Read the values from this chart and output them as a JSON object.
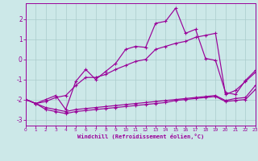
{
  "xlabel": "Windchill (Refroidissement éolien,°C)",
  "background_color": "#cce8e8",
  "grid_color": "#aacccc",
  "line_color": "#990099",
  "xlim": [
    0,
    23
  ],
  "ylim": [
    -3.3,
    2.8
  ],
  "xticks": [
    0,
    1,
    2,
    3,
    4,
    5,
    6,
    7,
    8,
    9,
    10,
    11,
    12,
    13,
    14,
    15,
    16,
    17,
    18,
    19,
    20,
    21,
    22,
    23
  ],
  "yticks": [
    -3,
    -2,
    -1,
    0,
    1,
    2
  ],
  "curves": [
    [
      -2.0,
      -2.2,
      -2.5,
      -2.6,
      -2.7,
      -2.6,
      -2.55,
      -2.5,
      -2.45,
      -2.4,
      -2.35,
      -2.3,
      -2.25,
      -2.2,
      -2.15,
      -2.05,
      -2.0,
      -1.95,
      -1.9,
      -1.85,
      -2.1,
      -2.05,
      -2.0,
      -1.5
    ],
    [
      -2.0,
      -2.2,
      -2.4,
      -2.5,
      -2.6,
      -2.5,
      -2.45,
      -2.4,
      -2.35,
      -2.3,
      -2.25,
      -2.2,
      -2.15,
      -2.1,
      -2.05,
      -2.0,
      -1.95,
      -1.9,
      -1.85,
      -1.8,
      -2.05,
      -1.95,
      -1.9,
      -1.3
    ],
    [
      -2.0,
      -2.2,
      -2.1,
      -1.9,
      -1.8,
      -1.3,
      -0.9,
      -0.9,
      -0.75,
      -0.5,
      -0.3,
      -0.1,
      0.0,
      0.5,
      0.65,
      0.8,
      0.9,
      1.1,
      1.2,
      1.3,
      -1.75,
      -1.55,
      -1.1,
      -0.65
    ],
    [
      -2.0,
      -2.2,
      -2.0,
      -1.8,
      -2.5,
      -1.1,
      -0.5,
      -1.0,
      -0.6,
      -0.2,
      0.5,
      0.65,
      0.6,
      1.8,
      1.9,
      2.55,
      1.3,
      1.5,
      0.05,
      -0.05,
      -1.65,
      -1.75,
      -1.05,
      -0.55
    ]
  ]
}
